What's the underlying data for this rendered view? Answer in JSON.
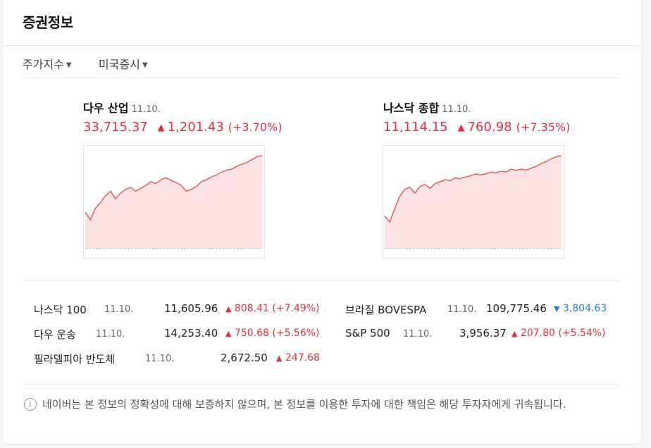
{
  "section_title": "증권정보",
  "filters": [
    {
      "label": "주가지수"
    },
    {
      "label": "미국증시"
    }
  ],
  "main_indices": [
    {
      "name": "다우 산업",
      "date": "11.10.",
      "value": "33,715.37",
      "change": "1,201.43",
      "percent": "(+3.70%)",
      "direction": "up",
      "intraday": [
        0.38,
        0.3,
        0.42,
        0.48,
        0.55,
        0.6,
        0.52,
        0.58,
        0.62,
        0.64,
        0.6,
        0.63,
        0.66,
        0.7,
        0.68,
        0.72,
        0.74,
        0.71,
        0.69,
        0.66,
        0.6,
        0.62,
        0.65,
        0.7,
        0.72,
        0.75,
        0.77,
        0.8,
        0.82,
        0.83,
        0.86,
        0.88,
        0.9,
        0.93,
        0.96,
        0.97
      ]
    },
    {
      "name": "나스닥 종합",
      "date": "11.10.",
      "value": "11,114.15",
      "change": "760.98",
      "percent": "(+7.35%)",
      "direction": "up",
      "intraday": [
        0.34,
        0.28,
        0.42,
        0.55,
        0.62,
        0.64,
        0.58,
        0.65,
        0.67,
        0.63,
        0.68,
        0.7,
        0.72,
        0.71,
        0.74,
        0.73,
        0.75,
        0.76,
        0.78,
        0.77,
        0.78,
        0.8,
        0.79,
        0.81,
        0.8,
        0.83,
        0.82,
        0.83,
        0.82,
        0.84,
        0.86,
        0.89,
        0.91,
        0.94,
        0.96,
        0.97
      ]
    }
  ],
  "other_indices_left": [
    {
      "name": "나스닥 100",
      "date": "11.10.",
      "value": "11,605.96",
      "change": "808.41",
      "percent": "(+7.49%)",
      "direction": "up"
    },
    {
      "name": "다우 운송",
      "date": "11.10.",
      "value": "14,253.40",
      "change": "750.68",
      "percent": "(+5.56%)",
      "direction": "up"
    },
    {
      "name": "필라델피아 반도체",
      "date": "11.10.",
      "value": "2,672.50",
      "change": "247.68",
      "percent": "",
      "direction": "up"
    }
  ],
  "other_indices_right": [
    {
      "name": "브라질 BOVESPA",
      "date": "11.10.",
      "value": "109,775.46",
      "change": "3,804.63",
      "percent": "",
      "direction": "down"
    },
    {
      "name": "S&P 500",
      "date": "11.10.",
      "value": "3,956.37",
      "change": "207.80",
      "percent": "(+5.54%)",
      "direction": "up"
    }
  ],
  "notice": "네이버는 본 정보의 정확성에 대해 보증하지 않으며, 본 정보를 이용한 투자에 대한 책임은 해당 투자자에게 귀속됩니다.",
  "colors": {
    "up": "#e22e40",
    "down": "#2f7ad4",
    "chart_line": "#e0574f",
    "chart_fill": "#fde4e2"
  },
  "icons": {
    "info": "info-circle-icon",
    "caret": "caret-down-icon",
    "up": "triangle-up-icon",
    "down": "triangle-down-icon"
  }
}
